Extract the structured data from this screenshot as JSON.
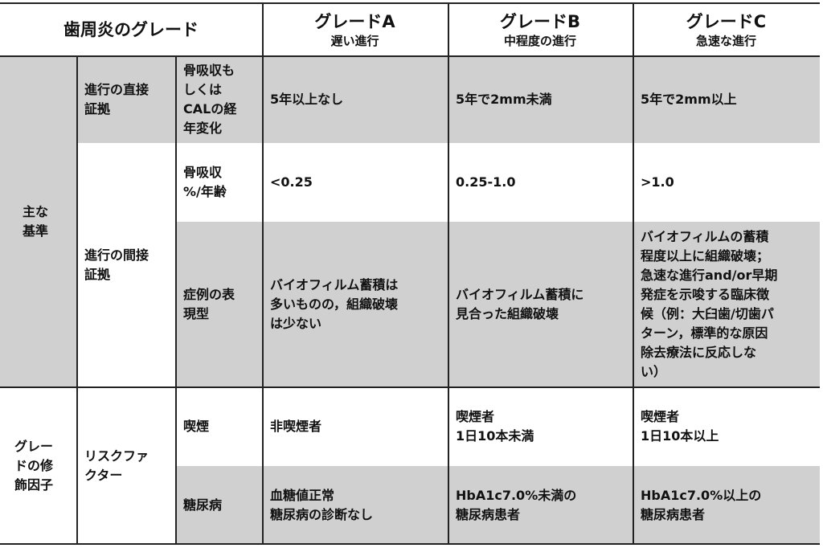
{
  "title": "歯周炎のグレード",
  "grades": [
    {
      "name": "グレードA",
      "sub": "遅い進行"
    },
    {
      "name": "グレードB",
      "sub": "中程度の進行"
    },
    {
      "name": "グレードC",
      "sub": "急速な進行"
    }
  ],
  "groups": {
    "primary": "主な\n基準",
    "modifiers": "グレー\nドの修\n飾因子"
  },
  "categories": {
    "direct": "進行の直接\n証拠",
    "indirect": "進行の間接\n証拠",
    "risk": "リスクファ\nクター"
  },
  "rows": [
    {
      "label": "骨吸収も\nしくは\nCALの経\n年変化",
      "values": [
        "5年以上なし",
        "5年で2mm未満",
        "5年で2mm以上"
      ]
    },
    {
      "label": "骨吸収\n%/年齢",
      "values": [
        "<0.25",
        "0.25-1.0",
        ">1.0"
      ]
    },
    {
      "label": "症例の表\n現型",
      "values": [
        "バイオフィルム蓄積は\n多いものの，組織破壊\nは少ない",
        "バイオフィルム蓄積に\n見合った組織破壊",
        "バイオフィルムの蓄積\n程度以上に組織破壊；\n急速な進行and/or早期\n発症を示唆する臨床徴\n候（例：大臼歯/切歯パ\nターン，標準的な原因\n除去療法に反応しな\nい）"
      ]
    },
    {
      "label": "喫煙",
      "values": [
        "非喫煙者",
        "喫煙者\n1日10本未満",
        "喫煙者\n1日10本以上"
      ]
    },
    {
      "label": "糖尿病",
      "values": [
        "血糖値正常\n糖尿病の診断なし",
        "HbA1c7.0%未満の\n糖尿病患者",
        "HbA1c7.0%以上の\n糖尿病患者"
      ]
    }
  ]
}
